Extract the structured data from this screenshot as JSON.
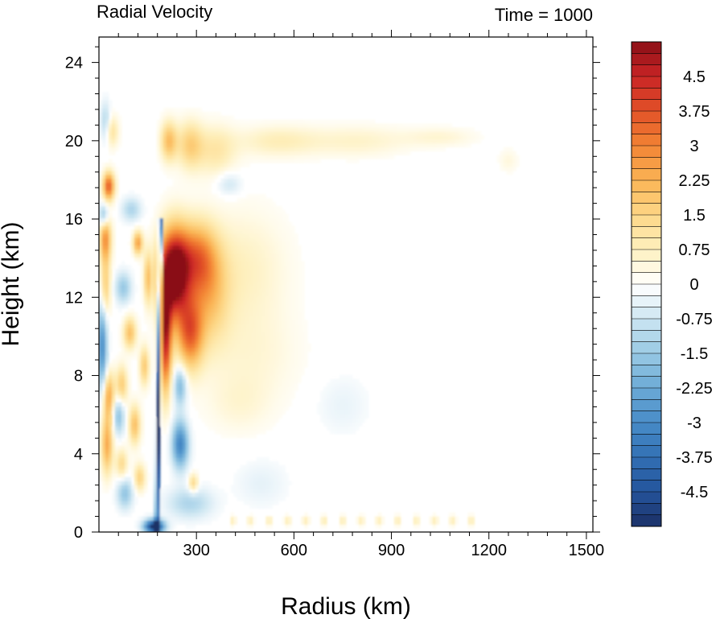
{
  "chart_data": {
    "type": "heatmap",
    "title": "Radial Velocity",
    "subtitle": "Time = 1000",
    "xlabel": "Radius (km)",
    "ylabel": "Height (km)",
    "xlim": [
      0,
      1520
    ],
    "ylim": [
      0,
      25.3
    ],
    "x_ticks": [
      300,
      600,
      900,
      1200,
      1500
    ],
    "x_tick_labels": [
      "300",
      "600",
      "900",
      "1200",
      "1500"
    ],
    "y_ticks": [
      0,
      4,
      8,
      12,
      16,
      20,
      24
    ],
    "y_tick_labels": [
      "0",
      "4",
      "8",
      "12",
      "16",
      "20",
      "24"
    ],
    "colorbar": {
      "min": -5.25,
      "max": 5.25,
      "step": 0.25,
      "tick_values": [
        4.5,
        3.75,
        3,
        2.25,
        1.5,
        0.75,
        0,
        -0.75,
        -1.5,
        -2.25,
        -3,
        -3.75,
        -4.5
      ],
      "tick_labels": [
        "4.5",
        "3.75",
        "3",
        "2.25",
        "1.5",
        "0.75",
        "0",
        "-0.75",
        "-1.5",
        "-2.25",
        "-3",
        "-3.75",
        "-4.5"
      ]
    },
    "features": [
      {
        "r": 230,
        "z": 13.2,
        "sr": 45,
        "sz": 2.2,
        "v": 6.0
      },
      {
        "r": 205,
        "z": 10.0,
        "sr": 18,
        "sz": 2.8,
        "v": 4.5
      },
      {
        "r": 300,
        "z": 14.0,
        "sr": 60,
        "sz": 1.8,
        "v": 2.8
      },
      {
        "r": 280,
        "z": 10.2,
        "sr": 40,
        "sz": 1.8,
        "v": 3.2
      },
      {
        "r": 340,
        "z": 12.0,
        "sr": 60,
        "sz": 2.5,
        "v": 1.5
      },
      {
        "r": 440,
        "z": 13.5,
        "sr": 140,
        "sz": 3.0,
        "v": 0.7
      },
      {
        "r": 470,
        "z": 9.0,
        "sr": 150,
        "sz": 2.5,
        "v": 0.45
      },
      {
        "r": 430,
        "z": 6.5,
        "sr": 100,
        "sz": 1.5,
        "v": 0.4
      },
      {
        "r": 215,
        "z": 20.0,
        "sr": 25,
        "sz": 1.0,
        "v": 2.0
      },
      {
        "r": 280,
        "z": 19.8,
        "sr": 40,
        "sz": 1.2,
        "v": 1.6
      },
      {
        "r": 360,
        "z": 19.5,
        "sr": 60,
        "sz": 1.3,
        "v": 1.0
      },
      {
        "r": 550,
        "z": 20.0,
        "sr": 130,
        "sz": 0.8,
        "v": 0.8
      },
      {
        "r": 800,
        "z": 20.0,
        "sr": 150,
        "sz": 0.8,
        "v": 0.6
      },
      {
        "r": 1050,
        "z": 20.2,
        "sr": 110,
        "sz": 0.5,
        "v": 0.5
      },
      {
        "r": 1260,
        "z": 19.0,
        "sr": 30,
        "sz": 0.6,
        "v": 0.4
      },
      {
        "r": 20,
        "z": 15.0,
        "sr": 18,
        "sz": 1.2,
        "v": 2.8
      },
      {
        "r": 20,
        "z": 12.5,
        "sr": 15,
        "sz": 1.5,
        "v": 1.8
      },
      {
        "r": 30,
        "z": 17.7,
        "sr": 18,
        "sz": 0.7,
        "v": 3.6
      },
      {
        "r": 40,
        "z": 20.5,
        "sr": 20,
        "sz": 0.8,
        "v": 1.2
      },
      {
        "r": 25,
        "z": 4.5,
        "sr": 18,
        "sz": 1.5,
        "v": 2.4
      },
      {
        "r": 30,
        "z": 7.0,
        "sr": 18,
        "sz": 1.2,
        "v": 2.4
      },
      {
        "r": 70,
        "z": 7.5,
        "sr": 18,
        "sz": 1.0,
        "v": 1.8
      },
      {
        "r": 110,
        "z": 5.5,
        "sr": 18,
        "sz": 1.0,
        "v": 2.0
      },
      {
        "r": 95,
        "z": 10.2,
        "sr": 20,
        "sz": 0.8,
        "v": 2.0
      },
      {
        "r": 120,
        "z": 14.8,
        "sr": 15,
        "sz": 0.6,
        "v": 2.6
      },
      {
        "r": 150,
        "z": 13.0,
        "sr": 12,
        "sz": 1.3,
        "v": 1.8
      },
      {
        "r": 140,
        "z": 8.5,
        "sr": 15,
        "sz": 1.0,
        "v": 1.8
      },
      {
        "r": 125,
        "z": 2.8,
        "sr": 18,
        "sz": 0.7,
        "v": 1.6
      },
      {
        "r": 70,
        "z": 3.5,
        "sr": 18,
        "sz": 0.8,
        "v": 1.4
      },
      {
        "r": 290,
        "z": 2.5,
        "sr": 15,
        "sz": 0.5,
        "v": 1.6
      },
      {
        "r": 10,
        "z": 9.5,
        "sr": 15,
        "sz": 2.2,
        "v": -3.0
      },
      {
        "r": 15,
        "z": 16.2,
        "sr": 15,
        "sz": 0.6,
        "v": -2.0
      },
      {
        "r": 20,
        "z": 21.0,
        "sr": 15,
        "sz": 1.0,
        "v": -1.2
      },
      {
        "r": 75,
        "z": 12.5,
        "sr": 25,
        "sz": 0.8,
        "v": -1.5
      },
      {
        "r": 100,
        "z": 16.5,
        "sr": 30,
        "sz": 0.6,
        "v": -1.2
      },
      {
        "r": 60,
        "z": 6.0,
        "sr": 18,
        "sz": 1.0,
        "v": -1.8
      },
      {
        "r": 80,
        "z": 2.0,
        "sr": 25,
        "sz": 0.8,
        "v": -1.6
      },
      {
        "r": 170,
        "z": 0.3,
        "sr": 30,
        "sz": 0.35,
        "v": -5.5
      },
      {
        "r": 250,
        "z": 4.5,
        "sr": 25,
        "sz": 1.2,
        "v": -3.2
      },
      {
        "r": 250,
        "z": 7.5,
        "sr": 20,
        "sz": 1.0,
        "v": -2.0
      },
      {
        "r": 280,
        "z": 1.5,
        "sr": 70,
        "sz": 0.8,
        "v": -1.2
      },
      {
        "r": 400,
        "z": 17.8,
        "sr": 40,
        "sz": 0.6,
        "v": -0.8
      },
      {
        "r": 500,
        "z": 2.5,
        "sr": 80,
        "sz": 1.2,
        "v": -0.4
      },
      {
        "r": 750,
        "z": 6.5,
        "sr": 80,
        "sz": 1.5,
        "v": -0.35
      }
    ],
    "sharp_inflow_line": {
      "r_top": 190,
      "z_top": 16,
      "r_bottom": 178,
      "z_bottom": 0,
      "v": -5.5
    },
    "boundary_flecks": {
      "r_min": 400,
      "r_max": 1180,
      "z": 0.6,
      "v": 1.5
    }
  }
}
